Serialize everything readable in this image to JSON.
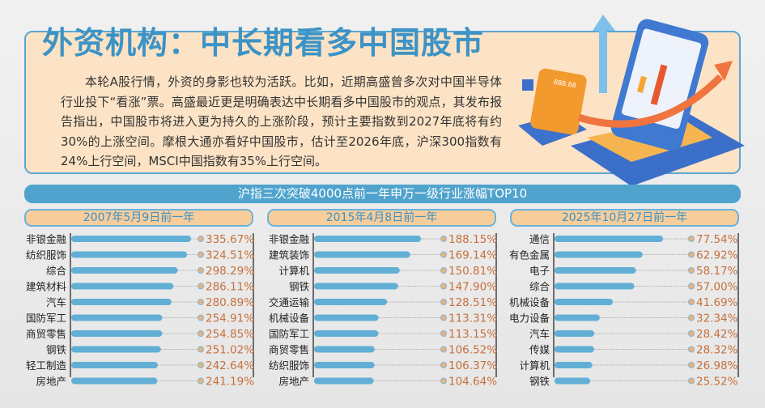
{
  "header": {
    "title": "外资机构：中长期看多中国股市",
    "intro": "本轮A股行情，外资的身影也较为活跃。比如，近期高盛曾多次对中国半导体行业投下“看涨”票。高盛最近更是明确表达中长期看多中国股市的观点，其发布报告指出，中国股市将进入更为持久的上涨阶段，预计主要指数到2027年底将有约30%的上涨空间。摩根大通亦看好中国股市，估计至2026年底，沪深300指数有24%上行空间，MSCI中国指数有35%上行空间。",
    "illustration_display": "888.88"
  },
  "banner": "沪指三次突破4000点前一年申万一级行业涨幅TOP10",
  "colors": {
    "bar": "#62afd6",
    "value": "#c8703a",
    "dot": "#e9b27a",
    "accent": "#3c93c6"
  },
  "chart_data": [
    {
      "type": "bar",
      "orientation": "horizontal",
      "title": "2007年5月9日前一年",
      "unit": "%",
      "categories": [
        "非银金融",
        "纺织服饰",
        "综合",
        "建筑材料",
        "汽车",
        "国防军工",
        "商贸零售",
        "钢铁",
        "轻工制造",
        "房地产"
      ],
      "values": [
        335.67,
        324.51,
        298.29,
        286.11,
        280.89,
        254.91,
        254.85,
        251.02,
        242.64,
        241.19
      ],
      "labels": [
        "335.67%",
        "324.51%",
        "298.29%",
        "286.11%",
        "280.89%",
        "254.91%",
        "254.85%",
        "251.02%",
        "242.64%",
        "241.19%"
      ]
    },
    {
      "type": "bar",
      "orientation": "horizontal",
      "title": "2015年4月8日前一年",
      "unit": "%",
      "categories": [
        "非银金融",
        "建筑装饰",
        "计算机",
        "钢铁",
        "交通运输",
        "机械设备",
        "国防军工",
        "商贸零售",
        "纺织服饰",
        "房地产"
      ],
      "values": [
        188.15,
        169.14,
        150.81,
        147.9,
        128.51,
        113.31,
        113.15,
        106.52,
        106.37,
        104.64
      ],
      "labels": [
        "188.15%",
        "169.14%",
        "150.81%",
        "147.90%",
        "128.51%",
        "113.31%",
        "113.15%",
        "106.52%",
        "106.37%",
        "104.64%"
      ]
    },
    {
      "type": "bar",
      "orientation": "horizontal",
      "title": "2025年10月27日前一年",
      "unit": "%",
      "categories": [
        "通信",
        "有色金属",
        "电子",
        "综合",
        "机械设备",
        "电力设备",
        "汽车",
        "传媒",
        "计算机",
        "钢铁"
      ],
      "values": [
        77.54,
        62.92,
        58.17,
        57.0,
        41.69,
        32.34,
        28.42,
        28.32,
        26.98,
        25.52
      ],
      "labels": [
        "77.54%",
        "62.92%",
        "58.17%",
        "57.00%",
        "41.69%",
        "32.34%",
        "28.42%",
        "28.32%",
        "26.98%",
        "25.52%"
      ]
    }
  ]
}
